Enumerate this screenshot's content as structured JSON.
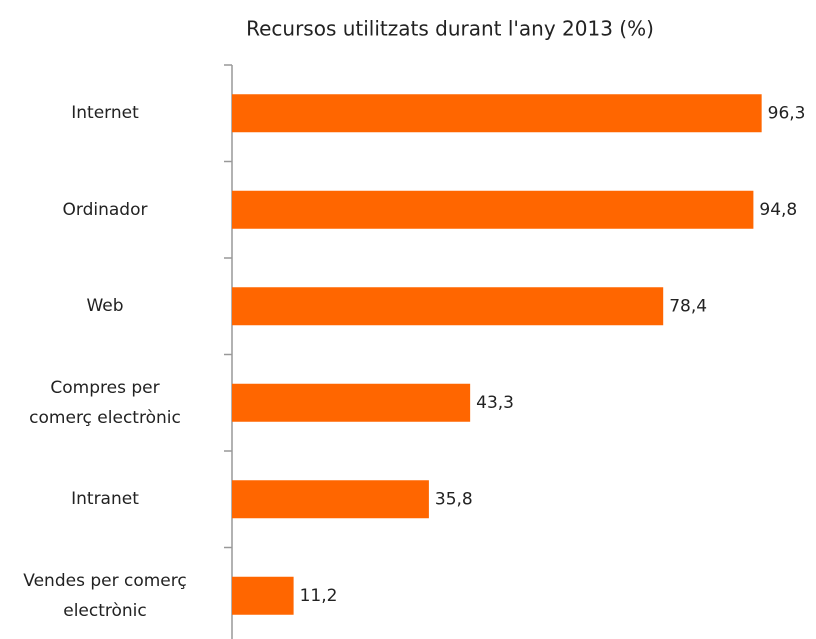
{
  "chart_data": {
    "type": "hbar",
    "title": "Recursos utilitzats durant l'any 2013 (%)",
    "categories": [
      "Internet",
      "Ordinador",
      "Web",
      "Compres per\ncomerç electrònic",
      "Intranet",
      "Vendes per comerç\nelectrònic"
    ],
    "values": [
      96.3,
      94.8,
      78.4,
      43.3,
      35.8,
      11.2
    ],
    "value_labels": [
      "96,3",
      "94,8",
      "78,4",
      "43,3",
      "35,8",
      "11,2"
    ],
    "color": "#ff6600",
    "xlim": [
      0,
      100
    ]
  }
}
